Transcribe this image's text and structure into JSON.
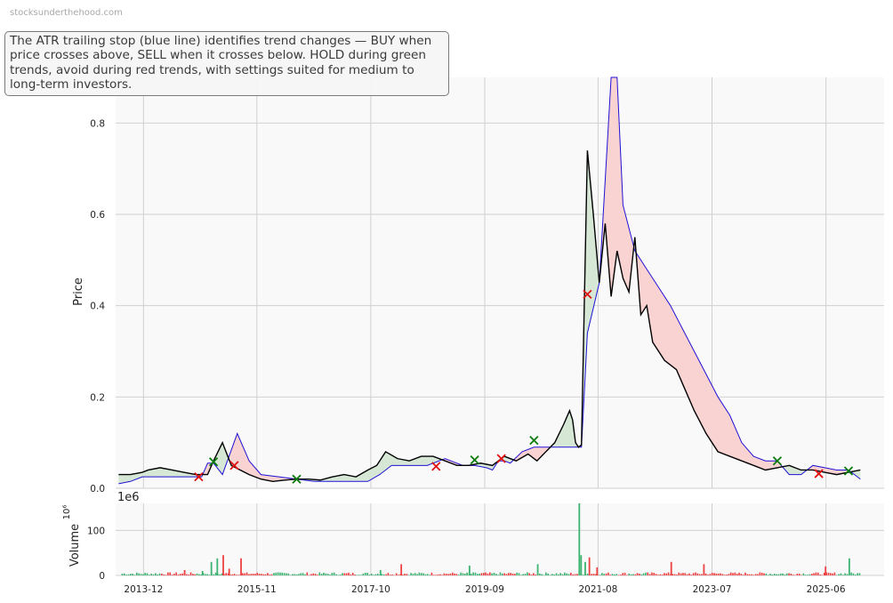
{
  "watermark": "stocksunderthehood.com",
  "annotation": "The ATR trailing stop (blue line) identifies trend changes — BUY when price crosses above, SELL when it crosses below. HOLD during green trends, avoid during red trends, with settings suited for medium to long-term investors.",
  "colors": {
    "price": "#000000",
    "stop": "#1f12d6",
    "bull_fill": "#d6e7d6",
    "bear_fill": "#f9d2d2",
    "buy_marker": "#0a7a0a",
    "sell_marker": "#e01010",
    "volume_up": "#3cb371",
    "volume_down": "#ee4040",
    "grid": "#d0d0d0",
    "plot_bg": "#f9f9f9"
  },
  "chart_data": [
    {
      "type": "line",
      "ylabel": "Price",
      "ylim": [
        0,
        0.9
      ],
      "yticks": [
        0.0,
        0.2,
        0.4,
        0.6,
        0.8
      ],
      "ytick_labels": [
        "0.0",
        "0.2",
        "0.4",
        "0.6",
        "0.8"
      ],
      "xlim": [
        2013.45,
        2026.4
      ],
      "grid": true,
      "series": [
        {
          "role": "price",
          "x": [
            2013.5,
            2013.7,
            2013.9,
            2014.0,
            2014.2,
            2014.4,
            2014.6,
            2014.8,
            2015.0,
            2015.1,
            2015.25,
            2015.4,
            2015.55,
            2015.7,
            2015.9,
            2016.1,
            2016.3,
            2016.5,
            2016.7,
            2016.9,
            2017.1,
            2017.3,
            2017.5,
            2017.7,
            2017.85,
            2018.0,
            2018.2,
            2018.4,
            2018.6,
            2018.8,
            2019.0,
            2019.2,
            2019.4,
            2019.6,
            2019.8,
            2020.0,
            2020.2,
            2020.4,
            2020.55,
            2020.7,
            2020.85,
            2021.0,
            2021.1,
            2021.15,
            2021.2,
            2021.25,
            2021.3,
            2021.4,
            2021.5,
            2021.6,
            2021.7,
            2021.8,
            2021.9,
            2022.0,
            2022.1,
            2022.2,
            2022.3,
            2022.4,
            2022.5,
            2022.6,
            2022.7,
            2022.8,
            2022.9,
            2023.0,
            2023.2,
            2023.4,
            2023.6,
            2023.8,
            2024.0,
            2024.2,
            2024.4,
            2024.6,
            2024.8,
            2025.0,
            2025.2,
            2025.4,
            2025.6,
            2025.8,
            2026.0
          ],
          "y": [
            0.03,
            0.03,
            0.035,
            0.04,
            0.045,
            0.04,
            0.035,
            0.03,
            0.03,
            0.06,
            0.1,
            0.05,
            0.04,
            0.03,
            0.02,
            0.015,
            0.018,
            0.02,
            0.02,
            0.018,
            0.025,
            0.03,
            0.025,
            0.04,
            0.05,
            0.08,
            0.065,
            0.06,
            0.07,
            0.07,
            0.06,
            0.05,
            0.05,
            0.055,
            0.05,
            0.07,
            0.06,
            0.075,
            0.06,
            0.08,
            0.1,
            0.14,
            0.17,
            0.15,
            0.1,
            0.09,
            0.095,
            0.74,
            0.6,
            0.45,
            0.58,
            0.42,
            0.52,
            0.46,
            0.43,
            0.55,
            0.38,
            0.4,
            0.32,
            0.3,
            0.28,
            0.27,
            0.26,
            0.23,
            0.17,
            0.12,
            0.08,
            0.07,
            0.06,
            0.05,
            0.04,
            0.045,
            0.05,
            0.04,
            0.04,
            0.035,
            0.03,
            0.035,
            0.04
          ]
        },
        {
          "role": "trailing_stop",
          "x": [
            2013.5,
            2013.7,
            2013.9,
            2014.2,
            2014.6,
            2014.9,
            2015.0,
            2015.1,
            2015.25,
            2015.5,
            2015.7,
            2015.9,
            2016.2,
            2016.5,
            2016.8,
            2017.1,
            2017.4,
            2017.7,
            2017.9,
            2018.1,
            2018.4,
            2018.7,
            2019.0,
            2019.1,
            2019.3,
            2019.5,
            2019.7,
            2019.8,
            2019.9,
            2020.0,
            2020.1,
            2020.3,
            2020.5,
            2020.7,
            2021.0,
            2021.3,
            2021.4,
            2021.6,
            2021.8,
            2021.9,
            2022.0,
            2022.2,
            2022.4,
            2022.6,
            2022.8,
            2023.0,
            2023.2,
            2023.4,
            2023.6,
            2023.8,
            2024.0,
            2024.2,
            2024.4,
            2024.6,
            2024.8,
            2025.0,
            2025.2,
            2025.4,
            2025.6,
            2025.8,
            2026.0
          ],
          "y": [
            0.01,
            0.015,
            0.025,
            0.025,
            0.025,
            0.025,
            0.055,
            0.055,
            0.03,
            0.12,
            0.06,
            0.03,
            0.025,
            0.02,
            0.015,
            0.015,
            0.015,
            0.015,
            0.03,
            0.05,
            0.05,
            0.05,
            0.065,
            0.06,
            0.05,
            0.05,
            0.045,
            0.04,
            0.06,
            0.06,
            0.055,
            0.08,
            0.09,
            0.09,
            0.09,
            0.09,
            0.34,
            0.45,
            0.9,
            0.9,
            0.62,
            0.52,
            0.48,
            0.44,
            0.4,
            0.35,
            0.3,
            0.25,
            0.2,
            0.16,
            0.1,
            0.07,
            0.06,
            0.06,
            0.03,
            0.03,
            0.05,
            0.045,
            0.04,
            0.04,
            0.02
          ]
        }
      ],
      "markers": {
        "buy": [
          {
            "x": 2015.1,
            "y": 0.058
          },
          {
            "x": 2016.5,
            "y": 0.02
          },
          {
            "x": 2019.5,
            "y": 0.062
          },
          {
            "x": 2020.5,
            "y": 0.105
          },
          {
            "x": 2024.6,
            "y": 0.06
          },
          {
            "x": 2025.8,
            "y": 0.038
          }
        ],
        "sell": [
          {
            "x": 2014.85,
            "y": 0.025
          },
          {
            "x": 2015.45,
            "y": 0.05
          },
          {
            "x": 2018.85,
            "y": 0.048
          },
          {
            "x": 2019.95,
            "y": 0.065
          },
          {
            "x": 2021.4,
            "y": 0.425
          },
          {
            "x": 2025.3,
            "y": 0.032
          }
        ]
      }
    },
    {
      "type": "bar",
      "ylabel": "Volume",
      "yexponent_label": "1e6",
      "ylim": [
        0,
        160
      ],
      "yticks": [
        0,
        100
      ],
      "ytick_labels": [
        "0",
        "100"
      ],
      "xtick_labels": [
        "2013-12",
        "2015-11",
        "2017-10",
        "2019-09",
        "2021-08",
        "2023-07",
        "2025-06"
      ],
      "xtick_positions": [
        2013.92,
        2015.83,
        2017.75,
        2019.67,
        2021.58,
        2023.5,
        2025.42
      ],
      "highlight_bars": [
        {
          "x": 2014.6,
          "value": 12
        },
        {
          "x": 2014.9,
          "value": 10
        },
        {
          "x": 2015.05,
          "value": 30
        },
        {
          "x": 2015.15,
          "value": 38
        },
        {
          "x": 2015.25,
          "value": 45
        },
        {
          "x": 2015.35,
          "value": 15
        },
        {
          "x": 2015.55,
          "value": 38
        },
        {
          "x": 2017.9,
          "value": 12
        },
        {
          "x": 2018.25,
          "value": 25
        },
        {
          "x": 2019.4,
          "value": 22
        },
        {
          "x": 2020.55,
          "value": 25
        },
        {
          "x": 2021.25,
          "value": 160
        },
        {
          "x": 2021.28,
          "value": 45
        },
        {
          "x": 2021.35,
          "value": 30
        },
        {
          "x": 2021.42,
          "value": 40
        },
        {
          "x": 2021.55,
          "value": 18
        },
        {
          "x": 2022.8,
          "value": 30
        },
        {
          "x": 2023.35,
          "value": 25
        },
        {
          "x": 2025.4,
          "value": 20
        },
        {
          "x": 2025.8,
          "value": 38
        }
      ]
    }
  ]
}
